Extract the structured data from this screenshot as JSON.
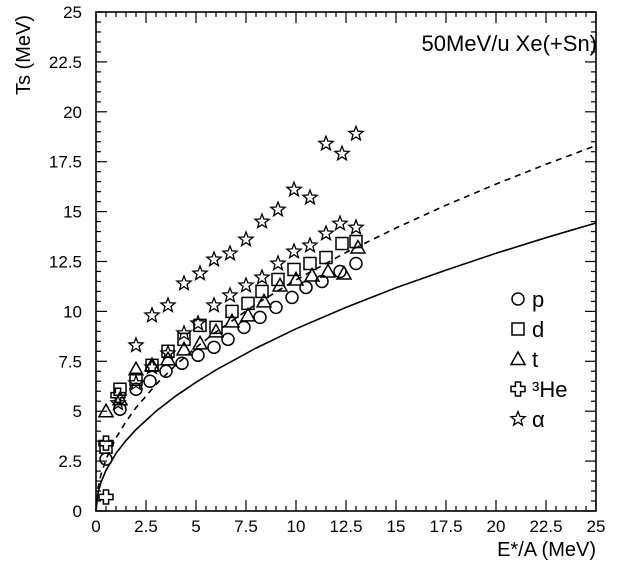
{
  "chart_data": {
    "type": "scatter",
    "title": "",
    "annotation": "50MeV/u Xe(+Sn)",
    "xlabel": "E*/A (MeV)",
    "ylabel": "Ts (MeV)",
    "xlim": [
      0,
      25
    ],
    "ylim": [
      0,
      25
    ],
    "x_ticks": [
      "0",
      "2.5",
      "5",
      "7.5",
      "10",
      "12.5",
      "15",
      "17.5",
      "20",
      "22.5",
      "25"
    ],
    "y_ticks": [
      "0",
      "2.5",
      "5",
      "7.5",
      "10",
      "12.5",
      "15",
      "17.5",
      "20",
      "22.5",
      "25"
    ],
    "grid": false,
    "legend_position": "right",
    "series": [
      {
        "name": "p",
        "marker": "circle",
        "x": [
          0.5,
          1.2,
          2.0,
          2.7,
          3.5,
          4.3,
          5.1,
          5.9,
          6.6,
          7.4,
          8.2,
          9.0,
          9.8,
          10.5,
          11.3,
          12.2,
          13.0
        ],
        "y": [
          2.6,
          5.1,
          6.1,
          6.5,
          7.0,
          7.4,
          7.8,
          8.2,
          8.6,
          9.2,
          9.7,
          10.2,
          10.7,
          11.2,
          11.5,
          12.0,
          12.4
        ]
      },
      {
        "name": "d",
        "marker": "square",
        "x": [
          0.5,
          1.2,
          2.0,
          2.8,
          3.6,
          4.4,
          5.2,
          6.0,
          6.8,
          7.6,
          8.3,
          9.1,
          9.9,
          10.7,
          11.5,
          12.3,
          13.0
        ],
        "y": [
          3.2,
          6.1,
          6.6,
          7.3,
          8.0,
          8.6,
          9.3,
          9.2,
          10.0,
          10.4,
          11.0,
          11.6,
          12.1,
          12.4,
          12.7,
          13.4,
          13.5
        ]
      },
      {
        "name": "t",
        "marker": "triangle",
        "x": [
          0.5,
          1.2,
          2.0,
          2.8,
          3.6,
          4.4,
          5.2,
          6.0,
          6.8,
          7.6,
          8.4,
          9.2,
          10.0,
          10.8,
          11.6,
          12.4,
          13.1
        ],
        "y": [
          5.0,
          5.6,
          7.1,
          7.3,
          7.6,
          8.1,
          8.4,
          9.0,
          9.5,
          9.8,
          10.5,
          11.3,
          11.6,
          11.8,
          12.0,
          11.9,
          13.2
        ]
      },
      {
        "name": "³He",
        "marker": "cross",
        "x": [
          0.5,
          0.5,
          1.1
        ],
        "y": [
          0.7,
          3.4,
          5.8
        ]
      },
      {
        "name": "α",
        "marker": "star",
        "x": [
          1.1,
          2.0,
          2.8,
          3.6,
          4.4,
          5.1,
          5.9,
          6.7,
          7.5,
          8.3,
          9.1,
          9.9,
          10.7,
          11.5,
          12.2,
          13.0,
          2.0,
          2.8,
          3.6,
          4.4,
          5.2,
          5.9,
          6.7,
          7.5,
          8.3,
          9.1,
          9.9,
          10.7,
          11.5,
          12.3,
          13.0
        ],
        "y": [
          5.4,
          6.4,
          7.2,
          7.9,
          8.9,
          9.4,
          10.3,
          10.8,
          11.3,
          11.7,
          12.4,
          13.0,
          13.3,
          13.9,
          14.4,
          14.2,
          8.3,
          9.8,
          10.3,
          11.4,
          11.9,
          12.6,
          12.9,
          13.6,
          14.5,
          15.1,
          16.1,
          15.7,
          18.4,
          17.9,
          18.9
        ]
      }
    ],
    "curves": [
      {
        "style": "solid",
        "x": [
          0,
          0.1,
          0.25,
          0.5,
          1,
          1.5,
          2,
          3,
          4,
          5,
          6,
          8,
          10,
          12.5,
          15,
          17.5,
          20,
          22.5,
          25
        ],
        "y": [
          0.0,
          0.91,
          1.44,
          2.04,
          2.89,
          3.53,
          4.08,
          5.0,
          5.77,
          6.45,
          7.07,
          8.16,
          9.13,
          10.2,
          11.18,
          12.07,
          12.91,
          13.69,
          14.43
        ]
      },
      {
        "style": "dashed",
        "x": [
          0,
          0.1,
          0.25,
          0.5,
          1,
          1.5,
          2,
          3,
          4,
          5,
          6,
          8,
          10,
          12.5,
          15,
          17.5,
          20,
          22.5,
          25
        ],
        "y": [
          0.0,
          1.16,
          1.83,
          2.59,
          3.66,
          4.48,
          5.18,
          6.34,
          7.32,
          8.19,
          8.97,
          10.36,
          11.58,
          12.95,
          14.18,
          15.32,
          16.38,
          17.37,
          18.31
        ]
      }
    ]
  }
}
